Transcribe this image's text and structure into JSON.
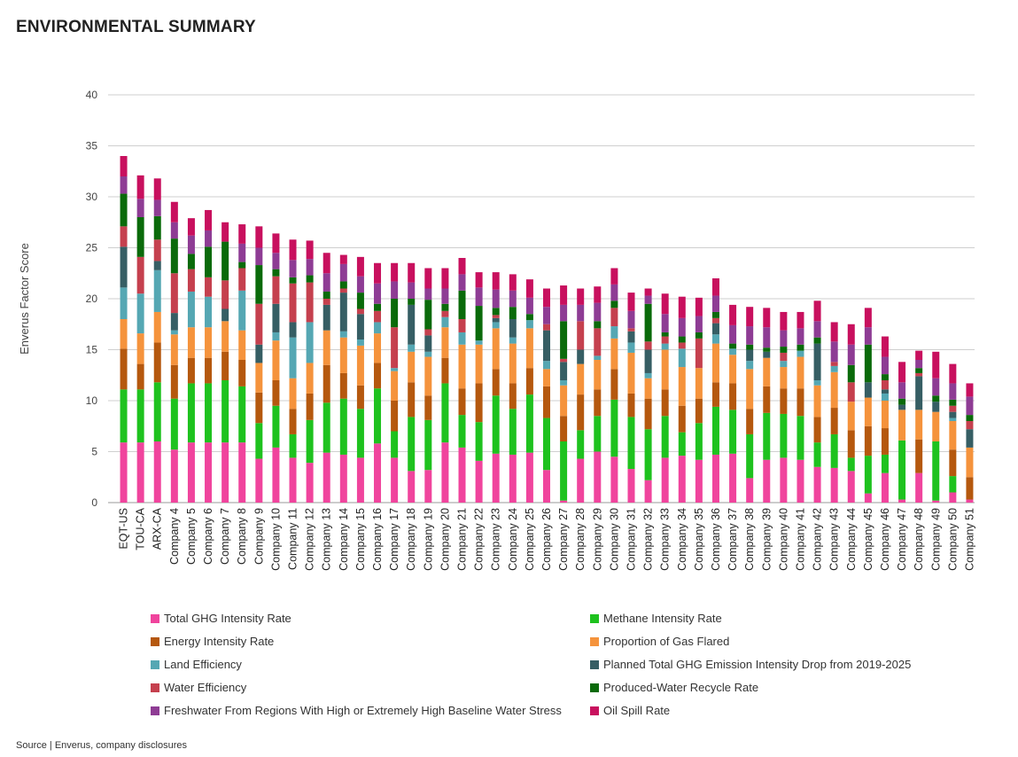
{
  "page": {
    "title": "ENVIRONMENTAL SUMMARY",
    "source": "Source | Enverus, company disclosures"
  },
  "chart_data": {
    "type": "bar",
    "stacked": true,
    "title": "ENVIRONMENTAL SUMMARY",
    "xlabel": "",
    "ylabel": "Enverus Factor Score",
    "ylim": [
      0,
      40
    ],
    "yticks": [
      0,
      5,
      10,
      15,
      20,
      25,
      30,
      35,
      40
    ],
    "grid": true,
    "categories": [
      "EQT-US",
      "TOU-CA",
      "ARX-CA",
      "Company 4",
      "Company 5",
      "Company 6",
      "Company 7",
      "Company 8",
      "Company 9",
      "Company 10",
      "Company 11",
      "Company 12",
      "Company 13",
      "Company 14",
      "Company 15",
      "Company 16",
      "Company 17",
      "Company 18",
      "Company 19",
      "Company 20",
      "Company 21",
      "Company 22",
      "Company 23",
      "Company 24",
      "Company 25",
      "Company 26",
      "Company 27",
      "Company 28",
      "Company 29",
      "Company 30",
      "Company 31",
      "Company 32",
      "Company 33",
      "Company 34",
      "Company 35",
      "Company 36",
      "Company 37",
      "Company 38",
      "Company 39",
      "Company 40",
      "Company 41",
      "Company 42",
      "Company 43",
      "Company 44",
      "Company 45",
      "Company 46",
      "Company 47",
      "Company 48",
      "Company 49",
      "Company 50",
      "Company 51"
    ],
    "series": [
      {
        "name": "Total GHG Intensity Rate",
        "color": "#f0449d",
        "values": [
          5.9,
          5.9,
          6.0,
          5.2,
          5.9,
          5.9,
          5.9,
          5.9,
          4.3,
          5.4,
          4.4,
          3.9,
          4.9,
          4.7,
          4.4,
          5.8,
          4.4,
          3.1,
          3.2,
          5.9,
          5.4,
          4.1,
          4.8,
          4.7,
          4.9,
          3.2,
          0.2,
          4.3,
          5.0,
          4.5,
          3.3,
          2.2,
          4.4,
          4.6,
          4.2,
          4.7,
          4.8,
          2.4,
          4.2,
          4.4,
          4.2,
          3.5,
          3.4,
          3.1,
          0.9,
          2.9,
          0.3,
          2.9,
          0.2,
          1.0,
          0.3
        ]
      },
      {
        "name": "Methane Intensity Rate",
        "color": "#1ec21e",
        "values": [
          5.2,
          5.2,
          5.8,
          5.0,
          5.8,
          5.8,
          6.1,
          5.5,
          3.5,
          4.1,
          2.3,
          4.2,
          4.9,
          5.5,
          4.8,
          5.4,
          2.6,
          5.3,
          4.9,
          5.8,
          3.2,
          3.8,
          5.7,
          4.5,
          5.7,
          5.1,
          5.8,
          2.8,
          3.5,
          5.6,
          5.1,
          5.0,
          4.1,
          2.3,
          3.6,
          4.7,
          4.3,
          4.3,
          4.6,
          4.3,
          4.3,
          2.4,
          3.3,
          1.3,
          3.7,
          1.8,
          5.8,
          0.0,
          5.8,
          1.6,
          0.0
        ]
      },
      {
        "name": "Energy Intensity Rate",
        "color": "#b5580e",
        "values": [
          4.0,
          2.5,
          3.9,
          3.3,
          2.5,
          2.5,
          2.8,
          2.6,
          3.0,
          2.5,
          2.5,
          2.6,
          3.7,
          2.5,
          2.3,
          2.5,
          3.0,
          3.4,
          2.4,
          2.5,
          2.6,
          3.8,
          2.6,
          2.5,
          2.6,
          3.1,
          2.5,
          3.5,
          2.6,
          3.0,
          2.3,
          3.0,
          2.6,
          2.6,
          2.4,
          2.4,
          2.6,
          2.5,
          2.6,
          2.5,
          2.7,
          2.5,
          2.6,
          2.7,
          2.9,
          2.6,
          0.0,
          3.3,
          0.0,
          2.6,
          2.2
        ]
      },
      {
        "name": "Proportion of Gas Flared",
        "color": "#f5933c",
        "values": [
          2.9,
          3.0,
          3.0,
          3.0,
          3.0,
          3.0,
          3.0,
          2.9,
          2.9,
          3.9,
          3.0,
          3.0,
          3.4,
          3.5,
          3.9,
          2.9,
          2.9,
          3.0,
          3.8,
          3.0,
          4.3,
          3.8,
          4.0,
          3.9,
          3.9,
          1.7,
          3.0,
          3.0,
          2.9,
          3.0,
          4.0,
          2.0,
          3.9,
          3.8,
          3.0,
          3.8,
          2.8,
          3.9,
          2.8,
          2.1,
          3.1,
          3.1,
          3.5,
          2.8,
          2.8,
          2.7,
          3.0,
          2.9,
          2.9,
          2.8,
          2.9
        ]
      },
      {
        "name": "Land Efficiency",
        "color": "#55a7b3",
        "values": [
          3.1,
          3.9,
          4.1,
          0.4,
          3.5,
          3.0,
          0.0,
          3.9,
          0.0,
          0.8,
          4.0,
          4.0,
          0.0,
          0.6,
          0.6,
          1.1,
          0.3,
          0.7,
          0.5,
          1.0,
          1.2,
          0.4,
          0.6,
          0.6,
          0.8,
          0.8,
          0.5,
          0.0,
          0.4,
          1.2,
          1.0,
          0.5,
          0.6,
          1.8,
          0.0,
          0.9,
          0.6,
          0.8,
          0.0,
          0.6,
          0.6,
          0.5,
          0.6,
          0.0,
          0.0,
          0.7,
          0.0,
          0.0,
          0.0,
          0.3,
          0.0
        ]
      },
      {
        "name": "Planned Total GHG Emission Intensity Drop from 2019-2025",
        "color": "#365e64",
        "values": [
          4.0,
          0.0,
          0.9,
          1.7,
          0.0,
          0.0,
          1.2,
          0.0,
          1.8,
          2.8,
          1.5,
          0.0,
          2.5,
          3.8,
          2.5,
          0.0,
          0.0,
          3.9,
          1.6,
          0.0,
          0.0,
          0.0,
          0.4,
          1.8,
          0.0,
          3.0,
          1.8,
          1.4,
          0.0,
          0.0,
          1.1,
          2.3,
          0.0,
          0.0,
          0.0,
          1.1,
          0.0,
          1.1,
          0.6,
          0.0,
          0.0,
          3.6,
          0.0,
          0.0,
          1.5,
          0.4,
          0.5,
          3.3,
          1.0,
          0.6,
          1.8
        ]
      },
      {
        "name": "Water Efficiency",
        "color": "#c5404e",
        "values": [
          2.0,
          3.6,
          2.1,
          3.9,
          2.2,
          1.9,
          2.8,
          2.2,
          4.0,
          2.7,
          3.8,
          3.9,
          0.6,
          0.4,
          0.5,
          1.1,
          4.0,
          0.0,
          0.6,
          0.6,
          1.3,
          0.0,
          0.3,
          0.0,
          0.0,
          0.6,
          0.3,
          2.8,
          2.7,
          1.8,
          0.3,
          0.8,
          0.7,
          0.6,
          2.9,
          0.5,
          0.0,
          0.0,
          0.0,
          0.8,
          0.0,
          0.0,
          0.4,
          1.9,
          0.0,
          0.9,
          0.0,
          0.3,
          0.0,
          0.6,
          0.8
        ]
      },
      {
        "name": "Produced-Water Recycle Rate",
        "color": "#0a6a0a",
        "values": [
          3.2,
          3.9,
          2.3,
          3.4,
          1.5,
          3.0,
          3.8,
          0.6,
          3.8,
          0.7,
          0.6,
          0.7,
          0.7,
          0.7,
          1.6,
          0.7,
          2.8,
          0.6,
          2.9,
          0.7,
          2.8,
          3.4,
          0.7,
          1.2,
          0.6,
          0.0,
          3.7,
          0.0,
          0.7,
          0.7,
          0.0,
          3.7,
          0.4,
          0.6,
          0.6,
          0.6,
          0.5,
          0.5,
          0.4,
          0.6,
          0.6,
          0.6,
          0.0,
          1.7,
          3.7,
          0.6,
          0.6,
          0.5,
          0.6,
          0.6,
          0.6
        ]
      },
      {
        "name": "Freshwater From Regions With High or Extremely High Baseline Water Stress",
        "color": "#8e3c94",
        "values": [
          1.7,
          1.8,
          1.6,
          1.6,
          1.8,
          1.6,
          0.0,
          1.8,
          1.7,
          1.6,
          1.7,
          1.6,
          1.8,
          1.7,
          1.6,
          2.0,
          1.7,
          1.6,
          1.1,
          1.5,
          1.6,
          1.8,
          1.8,
          1.6,
          1.6,
          1.7,
          1.6,
          1.6,
          1.8,
          1.6,
          1.7,
          0.8,
          1.8,
          1.8,
          1.6,
          1.6,
          1.8,
          1.8,
          2.0,
          1.6,
          1.6,
          1.6,
          2.0,
          2.0,
          1.7,
          1.7,
          1.6,
          0.8,
          1.7,
          1.6,
          1.8
        ]
      },
      {
        "name": "Oil Spill Rate",
        "color": "#c8105e",
        "values": [
          2.0,
          2.3,
          2.1,
          2.0,
          1.7,
          2.0,
          1.9,
          1.9,
          2.1,
          1.9,
          2.0,
          1.8,
          2.0,
          0.9,
          1.9,
          2.0,
          1.8,
          1.9,
          2.0,
          2.0,
          1.6,
          1.5,
          1.7,
          1.6,
          1.8,
          1.8,
          1.9,
          1.6,
          1.6,
          1.6,
          1.8,
          0.7,
          2.0,
          2.1,
          1.8,
          1.7,
          2.0,
          1.9,
          1.9,
          1.8,
          1.6,
          2.0,
          1.9,
          2.0,
          1.9,
          2.0,
          2.0,
          0.9,
          2.6,
          1.9,
          1.3
        ]
      }
    ]
  }
}
